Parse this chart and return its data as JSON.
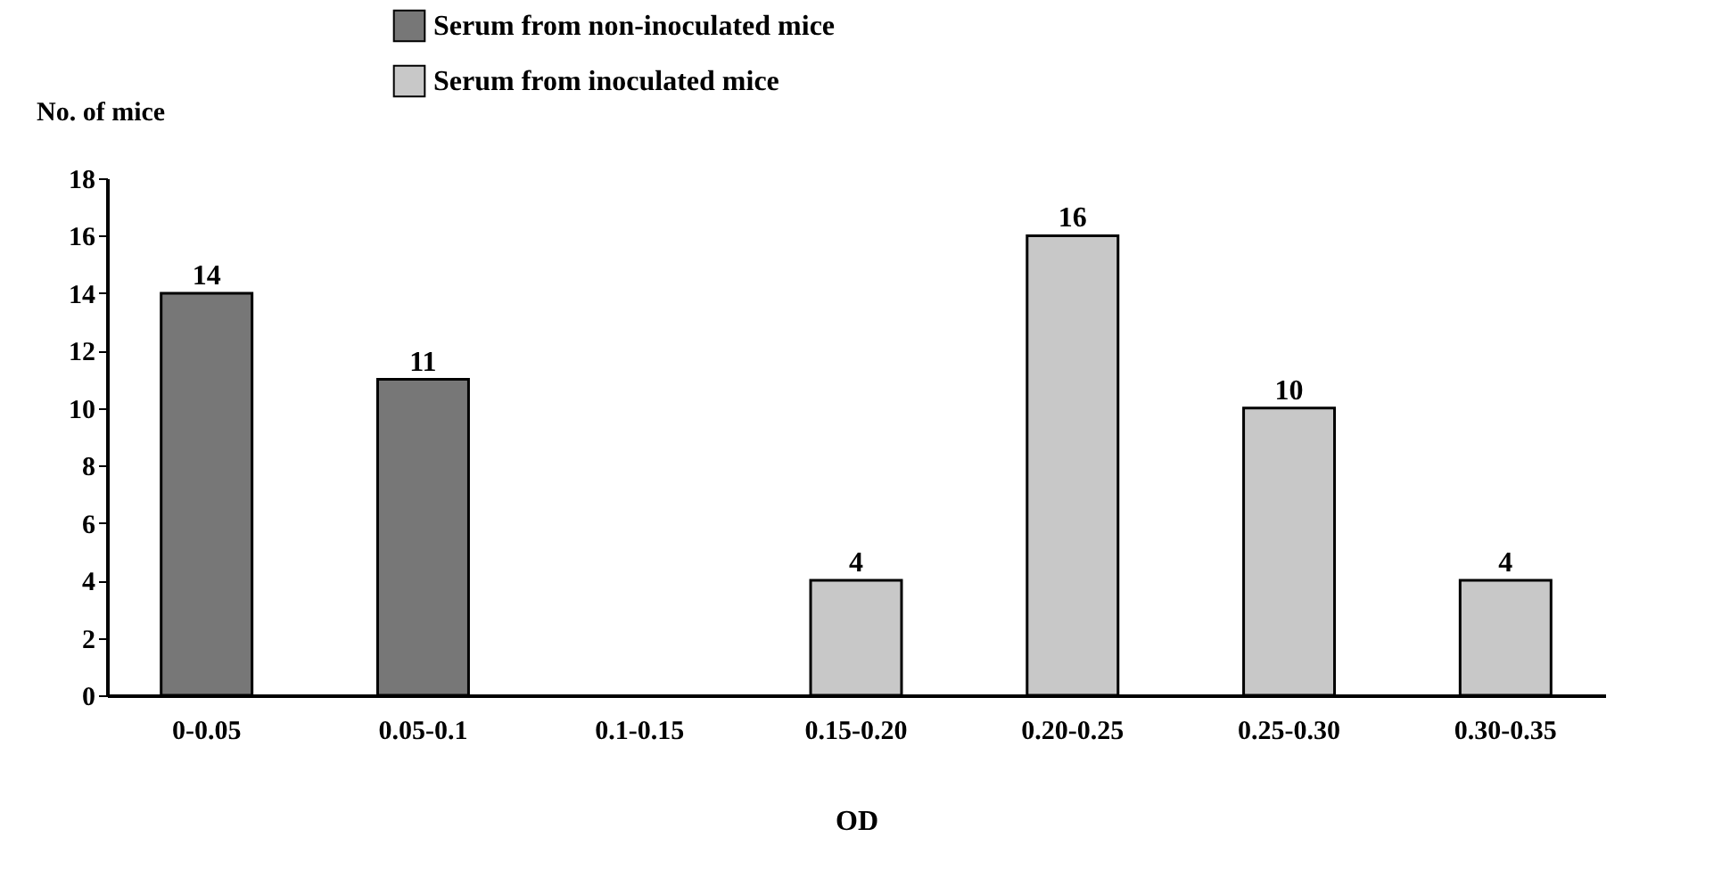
{
  "chart_data": {
    "type": "bar",
    "xlabel": "OD",
    "ylabel": "No. of mice",
    "categories": [
      "0-0.05",
      "0.05-0.1",
      "0.1-0.15",
      "0.15-0.20",
      "0.20-0.25",
      "0.25-0.30",
      "0.30-0.35"
    ],
    "series": [
      {
        "name": "Serum from non-inoculated mice",
        "color": "#777777",
        "values": [
          14,
          11,
          null,
          null,
          null,
          null,
          null
        ]
      },
      {
        "name": "Serum from inoculated mice",
        "color": "#c8c8c8",
        "values": [
          null,
          null,
          null,
          4,
          16,
          10,
          4
        ]
      }
    ],
    "ylim": [
      0,
      18
    ],
    "yticks": [
      0,
      2,
      4,
      6,
      8,
      10,
      12,
      14,
      16,
      18
    ],
    "grid": false,
    "legend": "top",
    "data_labels": true
  }
}
